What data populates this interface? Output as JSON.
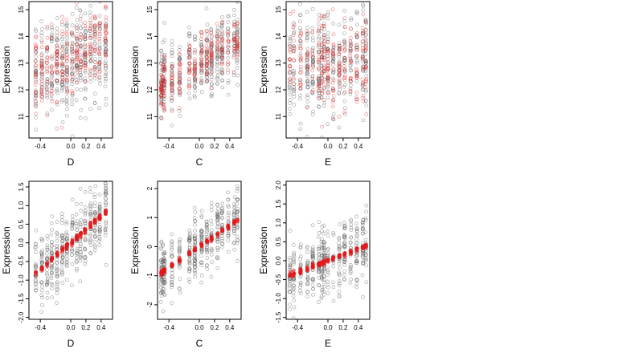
{
  "chart_data": [
    {
      "type": "scatter",
      "xlabel": "D",
      "ylabel": "Expression",
      "xlim": [
        -0.55,
        0.55
      ],
      "ylim": [
        10.2,
        15.3
      ],
      "xticks": [
        -0.4,
        0.0,
        0.2,
        0.4
      ],
      "xtick_labels": [
        "-0.4",
        "0.0",
        "0.2",
        "0.4"
      ],
      "yticks": [
        11,
        12,
        13,
        14,
        15
      ],
      "ytick_labels": [
        "11",
        "12",
        "13",
        "14",
        "15"
      ],
      "x_levels": [
        -0.46,
        -0.38,
        -0.31,
        -0.25,
        -0.18,
        -0.11,
        -0.05,
        0.02,
        0.08,
        0.13,
        0.19,
        0.26,
        0.32,
        0.38,
        0.46
      ],
      "observed": {
        "color": "#555555",
        "n": 420,
        "center": 13.1,
        "spread": 0.95,
        "slope": 1.1,
        "seed": 11
      },
      "fitted": {
        "color": "#e41a1c",
        "n": 260,
        "center": 13.2,
        "spread": 0.8,
        "slope": 1.3,
        "seed": 12,
        "style": "open"
      },
      "grid": false
    },
    {
      "type": "scatter",
      "xlabel": "C",
      "ylabel": "Expression",
      "xlim": [
        -0.55,
        0.55
      ],
      "ylim": [
        10.2,
        15.3
      ],
      "xticks": [
        -0.4,
        0.0,
        0.2,
        0.4
      ],
      "xtick_labels": [
        "-0.4",
        "0.0",
        "0.2",
        "0.4"
      ],
      "yticks": [
        11,
        12,
        13,
        14,
        15
      ],
      "ytick_labels": [
        "11",
        "12",
        "13",
        "14",
        "15"
      ],
      "x_levels": [
        -0.5,
        -0.48,
        -0.46,
        -0.36,
        -0.26,
        -0.13,
        -0.06,
        0.03,
        0.1,
        0.16,
        0.24,
        0.3,
        0.38,
        0.46,
        0.5
      ],
      "observed": {
        "color": "#555555",
        "n": 420,
        "center": 13.0,
        "spread": 0.7,
        "slope": 1.5,
        "seed": 21
      },
      "fitted": {
        "color": "#e41a1c",
        "n": 260,
        "center": 13.0,
        "spread": 0.45,
        "slope": 1.6,
        "seed": 22,
        "style": "open"
      },
      "grid": false
    },
    {
      "type": "scatter",
      "xlabel": "E",
      "ylabel": "Expression",
      "xlim": [
        -0.55,
        0.55
      ],
      "ylim": [
        10.2,
        15.3
      ],
      "xticks": [
        -0.4,
        0.0,
        0.2,
        0.4
      ],
      "xtick_labels": [
        "-0.4",
        "0.0",
        "0.2",
        "0.4"
      ],
      "yticks": [
        11,
        12,
        13,
        14,
        15
      ],
      "ytick_labels": [
        "11",
        "12",
        "13",
        "14",
        "15"
      ],
      "x_levels": [
        -0.5,
        -0.45,
        -0.36,
        -0.27,
        -0.2,
        -0.12,
        -0.08,
        -0.05,
        0.0,
        0.07,
        0.15,
        0.22,
        0.3,
        0.38,
        0.46,
        0.5
      ],
      "observed": {
        "color": "#555555",
        "n": 420,
        "center": 13.0,
        "spread": 0.95,
        "slope": 0.3,
        "seed": 31
      },
      "fitted": {
        "color": "#e41a1c",
        "n": 260,
        "center": 13.0,
        "spread": 0.85,
        "slope": 0.2,
        "seed": 32,
        "style": "open"
      },
      "grid": false
    },
    {
      "type": "scatter",
      "xlabel": "D",
      "ylabel": "Expression",
      "xlim": [
        -0.55,
        0.55
      ],
      "ylim": [
        -2.05,
        1.65
      ],
      "xticks": [
        -0.4,
        0.0,
        0.2,
        0.4
      ],
      "xtick_labels": [
        "-0.4",
        "0.0",
        "0.2",
        "0.4"
      ],
      "yticks": [
        -2.0,
        -1.5,
        -1.0,
        -0.5,
        0.0,
        0.5,
        1.0,
        1.5
      ],
      "ytick_labels": [
        "-2.0",
        "-1.5",
        "-1.0",
        "-0.5",
        "0.0",
        "0.5",
        "1.0",
        "1.5"
      ],
      "x_levels": [
        -0.46,
        -0.38,
        -0.31,
        -0.25,
        -0.18,
        -0.11,
        -0.05,
        0.02,
        0.08,
        0.13,
        0.19,
        0.26,
        0.32,
        0.38,
        0.46
      ],
      "observed": {
        "color": "#555555",
        "n": 420,
        "center": 0.0,
        "spread": 0.5,
        "slope": 1.8,
        "seed": 41
      },
      "fitted": {
        "color": "#e41a1c",
        "n": 150,
        "center": 0.0,
        "spread": 0.04,
        "slope": 1.8,
        "seed": 42,
        "style": "solid"
      },
      "grid": false
    },
    {
      "type": "scatter",
      "xlabel": "C",
      "ylabel": "Expression",
      "xlim": [
        -0.55,
        0.55
      ],
      "ylim": [
        -2.5,
        2.25
      ],
      "xticks": [
        -0.4,
        0.0,
        0.2,
        0.4
      ],
      "xtick_labels": [
        "-0.4",
        "0.0",
        "0.2",
        "0.4"
      ],
      "yticks": [
        -2,
        -1,
        0,
        1,
        2
      ],
      "ytick_labels": [
        "-2",
        "-1",
        "0",
        "1",
        "2"
      ],
      "x_levels": [
        -0.5,
        -0.48,
        -0.46,
        -0.36,
        -0.26,
        -0.13,
        -0.06,
        0.03,
        0.1,
        0.16,
        0.24,
        0.3,
        0.38,
        0.46,
        0.5
      ],
      "observed": {
        "color": "#555555",
        "n": 420,
        "center": 0.0,
        "spread": 0.55,
        "slope": 1.8,
        "seed": 51
      },
      "fitted": {
        "color": "#e41a1c",
        "n": 150,
        "center": 0.0,
        "spread": 0.04,
        "slope": 1.8,
        "seed": 52,
        "style": "solid"
      },
      "grid": false
    },
    {
      "type": "scatter",
      "xlabel": "E",
      "ylabel": "Expression",
      "xlim": [
        -0.55,
        0.55
      ],
      "ylim": [
        -1.55,
        2.1
      ],
      "xticks": [
        -0.4,
        0.0,
        0.2,
        0.4
      ],
      "xtick_labels": [
        "-0.4",
        "0.0",
        "0.2",
        "0.4"
      ],
      "yticks": [
        -1.5,
        -1.0,
        -0.5,
        0.0,
        0.5,
        1.0,
        1.5,
        2.0
      ],
      "ytick_labels": [
        "-1.5",
        "-1.0",
        "-0.5",
        "0.0",
        "0.5",
        "1.0",
        "1.5",
        "2.0"
      ],
      "x_levels": [
        -0.5,
        -0.45,
        -0.36,
        -0.27,
        -0.2,
        -0.12,
        -0.08,
        -0.05,
        0.0,
        0.07,
        0.15,
        0.22,
        0.3,
        0.38,
        0.46,
        0.5
      ],
      "observed": {
        "color": "#555555",
        "n": 420,
        "center": 0.0,
        "spread": 0.45,
        "slope": 0.8,
        "seed": 61
      },
      "fitted": {
        "color": "#e41a1c",
        "n": 150,
        "center": 0.0,
        "spread": 0.03,
        "slope": 0.8,
        "seed": 62,
        "style": "solid"
      },
      "grid": false
    }
  ]
}
